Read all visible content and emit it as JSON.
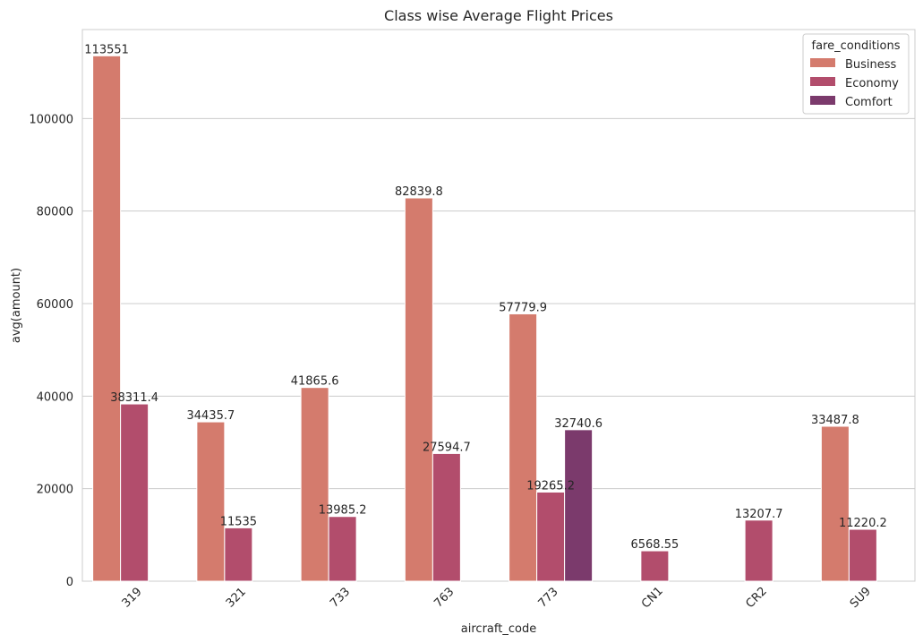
{
  "chart_data": {
    "type": "bar",
    "title": "Class wise Average Flight Prices",
    "xlabel": "aircraft_code",
    "ylabel": "avg(amount)",
    "categories": [
      "319",
      "321",
      "733",
      "763",
      "773",
      "CN1",
      "CR2",
      "SU9"
    ],
    "series": [
      {
        "name": "Business",
        "color": "#d47b6d",
        "values": [
          113551,
          34435.7,
          41865.6,
          82839.8,
          57779.9,
          null,
          null,
          33487.8
        ],
        "labels": [
          "113551",
          "34435.7",
          "41865.6",
          "82839.8",
          "57779.9",
          null,
          null,
          "33487.8"
        ]
      },
      {
        "name": "Economy",
        "color": "#b24d6c",
        "values": [
          38311.4,
          11535,
          13985.2,
          27594.7,
          19265.2,
          6568.55,
          13207.7,
          11220.2
        ],
        "labels": [
          "38311.4",
          "11535",
          "13985.2",
          "27594.7",
          "19265.2",
          "6568.55",
          "13207.7",
          "11220.2"
        ]
      },
      {
        "name": "Comfort",
        "color": "#7b3a6c",
        "values": [
          null,
          null,
          null,
          null,
          32740.6,
          null,
          null,
          null
        ],
        "labels": [
          null,
          null,
          null,
          null,
          "32740.6",
          null,
          null,
          null
        ]
      }
    ],
    "ylim": [
      0,
      119228.55
    ],
    "yticks": [
      0,
      20000,
      40000,
      60000,
      80000,
      100000
    ],
    "grid": true,
    "legend": {
      "title": "fare_conditions",
      "position": "top-right"
    }
  }
}
